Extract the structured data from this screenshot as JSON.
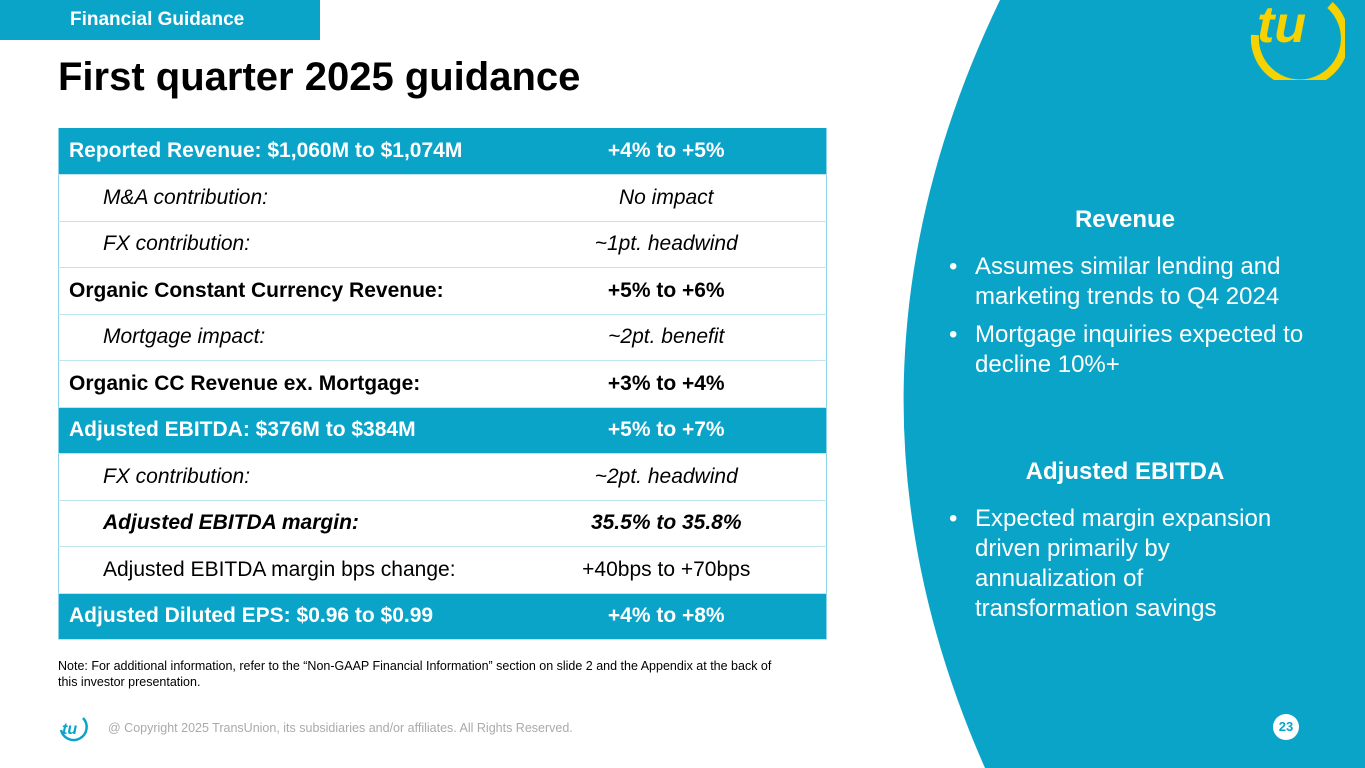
{
  "header": {
    "section_tag": "Financial Guidance",
    "title": "First quarter 2025 guidance"
  },
  "colors": {
    "brand_blue": "#0aa4c9",
    "brand_yellow": "#f5d200"
  },
  "table": {
    "rows": [
      {
        "label": "Reported Revenue: $1,060M to $1,074M",
        "value": "+4% to +5%",
        "style": "highlight"
      },
      {
        "label": "M&A contribution:",
        "value": "No impact",
        "style": "sub"
      },
      {
        "label": "FX contribution:",
        "value": "~1pt. headwind",
        "style": "sub"
      },
      {
        "label": "Organic Constant Currency Revenue:",
        "value": "+5% to +6%",
        "style": "bold"
      },
      {
        "label": "Mortgage impact:",
        "value": "~2pt. benefit",
        "style": "sub"
      },
      {
        "label": "Organic CC Revenue ex. Mortgage:",
        "value": "+3% to +4%",
        "style": "bold"
      },
      {
        "label": "Adjusted EBITDA: $376M to $384M",
        "value": "+5% to +7%",
        "style": "highlight"
      },
      {
        "label": "FX contribution:",
        "value": "~2pt. headwind",
        "style": "sub"
      },
      {
        "label": "Adjusted EBITDA margin:",
        "value": "35.5% to 35.8%",
        "style": "sub-bold"
      },
      {
        "label": "Adjusted EBITDA margin bps change:",
        "value": "+40bps to +70bps",
        "style": "sub-mixed"
      },
      {
        "label": "Adjusted Diluted EPS: $0.96 to $0.99",
        "value": "+4% to +8%",
        "style": "highlight"
      }
    ]
  },
  "right_panel": {
    "revenue": {
      "heading": "Revenue",
      "bullets": [
        "Assumes similar lending and marketing trends to Q4 2024",
        "Mortgage inquiries expected to decline 10%+"
      ]
    },
    "ebitda": {
      "heading": "Adjusted EBITDA",
      "bullets": [
        "Expected margin expansion driven primarily by annualization of transformation savings"
      ]
    }
  },
  "footer": {
    "note": "Note: For additional information, refer to the “Non-GAAP Financial Information” section on slide 2 and the Appendix at the back of this investor presentation.",
    "copyright": "@ Copyright 2025 TransUnion, its subsidiaries and/or affiliates.  All Rights Reserved.",
    "page_number": "23",
    "logo_text": "tu"
  }
}
